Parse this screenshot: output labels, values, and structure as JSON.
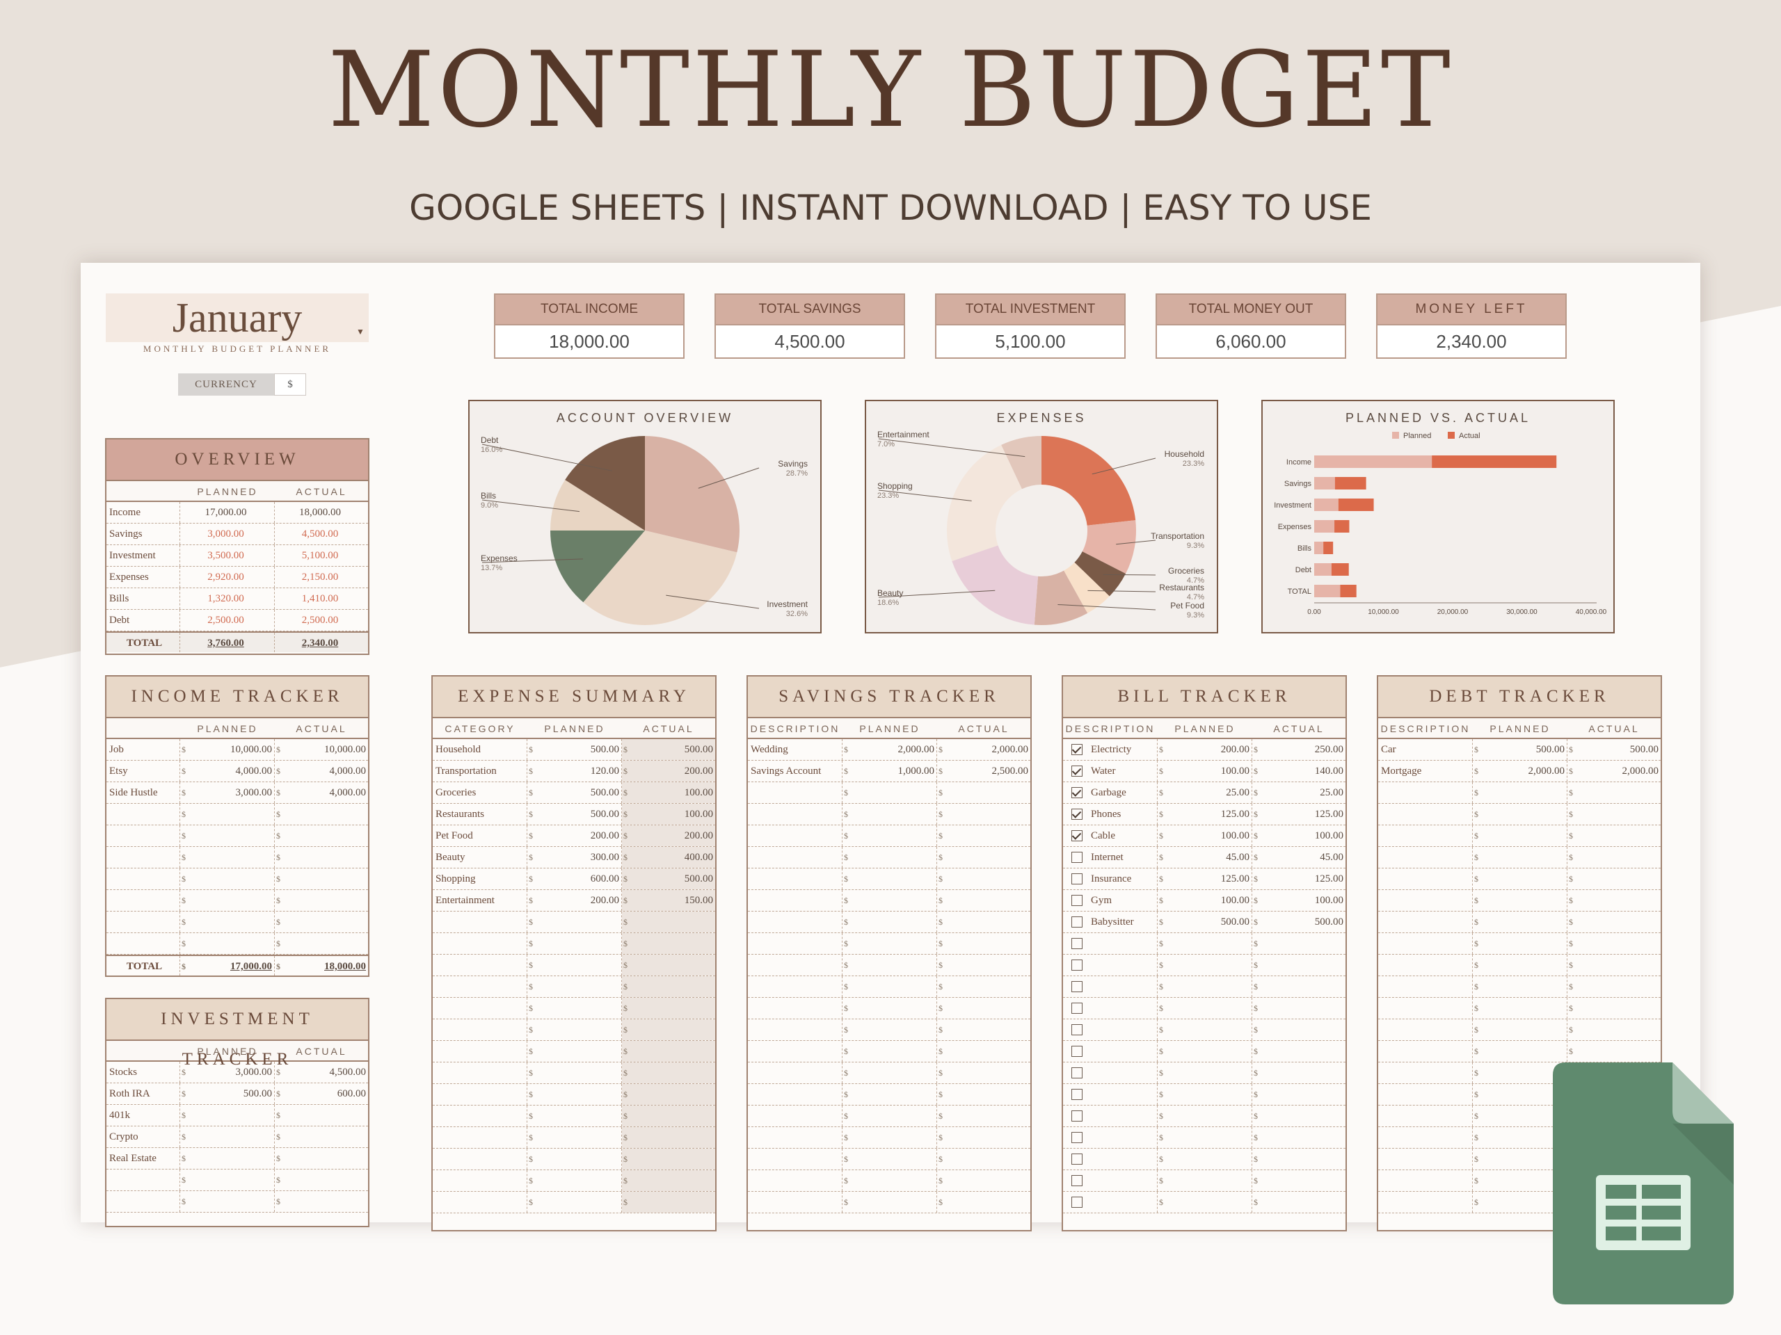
{
  "header": {
    "title": "MONTHLY BUDGET",
    "subtitle": "GOOGLE SHEETS | INSTANT DOWNLOAD | EASY TO USE"
  },
  "month": {
    "name": "January",
    "subtitle": "MONTHLY BUDGET PLANNER",
    "currency_label": "CURRENCY",
    "currency_value": "$"
  },
  "kpis": [
    {
      "label": "TOTAL INCOME",
      "value": "18,000.00"
    },
    {
      "label": "TOTAL SAVINGS",
      "value": "4,500.00"
    },
    {
      "label": "TOTAL INVESTMENT",
      "value": "5,100.00"
    },
    {
      "label": "TOTAL MONEY OUT",
      "value": "6,060.00"
    },
    {
      "label": "MONEY LEFT",
      "value": "2,340.00"
    }
  ],
  "overview": {
    "title": "OVERVIEW",
    "col_planned": "PLANNED",
    "col_actual": "ACTUAL",
    "rows": [
      {
        "label": "Income",
        "planned": "17,000.00",
        "actual": "18,000.00"
      },
      {
        "label": "Savings",
        "planned": "3,000.00",
        "actual": "4,500.00"
      },
      {
        "label": "Investment",
        "planned": "3,500.00",
        "actual": "5,100.00"
      },
      {
        "label": "Expenses",
        "planned": "2,920.00",
        "actual": "2,150.00"
      },
      {
        "label": "Bills",
        "planned": "1,320.00",
        "actual": "1,410.00"
      },
      {
        "label": "Debt",
        "planned": "2,500.00",
        "actual": "2,500.00"
      }
    ],
    "total_label": "TOTAL",
    "total_planned": "3,760.00",
    "total_actual": "2,340.00"
  },
  "income_tracker": {
    "title": "INCOME TRACKER",
    "col_planned": "PLANNED",
    "col_actual": "ACTUAL",
    "rows": [
      {
        "label": "Job",
        "planned": "10,000.00",
        "actual": "10,000.00"
      },
      {
        "label": "Etsy",
        "planned": "4,000.00",
        "actual": "4,000.00"
      },
      {
        "label": "Side Hustle",
        "planned": "3,000.00",
        "actual": "4,000.00"
      },
      {
        "label": "",
        "planned": "",
        "actual": ""
      },
      {
        "label": "",
        "planned": "",
        "actual": ""
      },
      {
        "label": "",
        "planned": "",
        "actual": ""
      },
      {
        "label": "",
        "planned": "",
        "actual": ""
      },
      {
        "label": "",
        "planned": "",
        "actual": ""
      },
      {
        "label": "",
        "planned": "",
        "actual": ""
      },
      {
        "label": "",
        "planned": "",
        "actual": ""
      }
    ],
    "total_label": "TOTAL",
    "total_planned": "17,000.00",
    "total_actual": "18,000.00"
  },
  "investment_tracker": {
    "title": "INVESTMENT TRACKER",
    "col_planned": "PLANNED",
    "col_actual": "ACTUAL",
    "rows": [
      {
        "label": "Stocks",
        "planned": "3,000.00",
        "actual": "4,500.00"
      },
      {
        "label": "Roth IRA",
        "planned": "500.00",
        "actual": "600.00"
      },
      {
        "label": "401k",
        "planned": "",
        "actual": ""
      },
      {
        "label": "Crypto",
        "planned": "",
        "actual": ""
      },
      {
        "label": "Real Estate",
        "planned": "",
        "actual": ""
      },
      {
        "label": "",
        "planned": "",
        "actual": ""
      },
      {
        "label": "",
        "planned": "",
        "actual": ""
      }
    ]
  },
  "expense_summary": {
    "title": "EXPENSE SUMMARY",
    "col_category": "CATEGORY",
    "col_planned": "PLANNED",
    "col_actual": "ACTUAL",
    "rows": [
      {
        "label": "Household",
        "planned": "500.00",
        "actual": "500.00"
      },
      {
        "label": "Transportation",
        "planned": "120.00",
        "actual": "200.00"
      },
      {
        "label": "Groceries",
        "planned": "500.00",
        "actual": "100.00"
      },
      {
        "label": "Restaurants",
        "planned": "500.00",
        "actual": "100.00"
      },
      {
        "label": "Pet Food",
        "planned": "200.00",
        "actual": "200.00"
      },
      {
        "label": "Beauty",
        "planned": "300.00",
        "actual": "400.00"
      },
      {
        "label": "Shopping",
        "planned": "600.00",
        "actual": "500.00"
      },
      {
        "label": "Entertainment",
        "planned": "200.00",
        "actual": "150.00"
      },
      {
        "label": "",
        "planned": "",
        "actual": ""
      },
      {
        "label": "",
        "planned": "",
        "actual": ""
      },
      {
        "label": "",
        "planned": "",
        "actual": ""
      },
      {
        "label": "",
        "planned": "",
        "actual": ""
      },
      {
        "label": "",
        "planned": "",
        "actual": ""
      },
      {
        "label": "",
        "planned": "",
        "actual": ""
      },
      {
        "label": "",
        "planned": "",
        "actual": ""
      },
      {
        "label": "",
        "planned": "",
        "actual": ""
      },
      {
        "label": "",
        "planned": "",
        "actual": ""
      },
      {
        "label": "",
        "planned": "",
        "actual": ""
      },
      {
        "label": "",
        "planned": "",
        "actual": ""
      },
      {
        "label": "",
        "planned": "",
        "actual": ""
      },
      {
        "label": "",
        "planned": "",
        "actual": ""
      },
      {
        "label": "",
        "planned": "",
        "actual": ""
      }
    ]
  },
  "savings_tracker": {
    "title": "SAVINGS TRACKER",
    "col_description": "DESCRIPTION",
    "col_planned": "PLANNED",
    "col_actual": "ACTUAL",
    "rows": [
      {
        "label": "Wedding",
        "planned": "2,000.00",
        "actual": "2,000.00"
      },
      {
        "label": "Savings Account",
        "planned": "1,000.00",
        "actual": "2,500.00"
      },
      {
        "label": "",
        "planned": "",
        "actual": ""
      },
      {
        "label": "",
        "planned": "",
        "actual": ""
      },
      {
        "label": "",
        "planned": "",
        "actual": ""
      },
      {
        "label": "",
        "planned": "",
        "actual": ""
      },
      {
        "label": "",
        "planned": "",
        "actual": ""
      },
      {
        "label": "",
        "planned": "",
        "actual": ""
      },
      {
        "label": "",
        "planned": "",
        "actual": ""
      },
      {
        "label": "",
        "planned": "",
        "actual": ""
      },
      {
        "label": "",
        "planned": "",
        "actual": ""
      },
      {
        "label": "",
        "planned": "",
        "actual": ""
      },
      {
        "label": "",
        "planned": "",
        "actual": ""
      },
      {
        "label": "",
        "planned": "",
        "actual": ""
      },
      {
        "label": "",
        "planned": "",
        "actual": ""
      },
      {
        "label": "",
        "planned": "",
        "actual": ""
      },
      {
        "label": "",
        "planned": "",
        "actual": ""
      },
      {
        "label": "",
        "planned": "",
        "actual": ""
      },
      {
        "label": "",
        "planned": "",
        "actual": ""
      },
      {
        "label": "",
        "planned": "",
        "actual": ""
      },
      {
        "label": "",
        "planned": "",
        "actual": ""
      },
      {
        "label": "",
        "planned": "",
        "actual": ""
      }
    ]
  },
  "bill_tracker": {
    "title": "BILL TRACKER",
    "col_description": "DESCRIPTION",
    "col_planned": "PLANNED",
    "col_actual": "ACTUAL",
    "rows": [
      {
        "checked": true,
        "label": "Electricty",
        "planned": "200.00",
        "actual": "250.00"
      },
      {
        "checked": true,
        "label": "Water",
        "planned": "100.00",
        "actual": "140.00"
      },
      {
        "checked": true,
        "label": "Garbage",
        "planned": "25.00",
        "actual": "25.00"
      },
      {
        "checked": true,
        "label": "Phones",
        "planned": "125.00",
        "actual": "125.00"
      },
      {
        "checked": true,
        "label": "Cable",
        "planned": "100.00",
        "actual": "100.00"
      },
      {
        "checked": false,
        "label": "Internet",
        "planned": "45.00",
        "actual": "45.00"
      },
      {
        "checked": false,
        "label": "Insurance",
        "planned": "125.00",
        "actual": "125.00"
      },
      {
        "checked": false,
        "label": "Gym",
        "planned": "100.00",
        "actual": "100.00"
      },
      {
        "checked": false,
        "label": "Babysitter",
        "planned": "500.00",
        "actual": "500.00"
      },
      {
        "checked": false,
        "label": "",
        "planned": "",
        "actual": ""
      },
      {
        "checked": false,
        "label": "",
        "planned": "",
        "actual": ""
      },
      {
        "checked": false,
        "label": "",
        "planned": "",
        "actual": ""
      },
      {
        "checked": false,
        "label": "",
        "planned": "",
        "actual": ""
      },
      {
        "checked": false,
        "label": "",
        "planned": "",
        "actual": ""
      },
      {
        "checked": false,
        "label": "",
        "planned": "",
        "actual": ""
      },
      {
        "checked": false,
        "label": "",
        "planned": "",
        "actual": ""
      },
      {
        "checked": false,
        "label": "",
        "planned": "",
        "actual": ""
      },
      {
        "checked": false,
        "label": "",
        "planned": "",
        "actual": ""
      },
      {
        "checked": false,
        "label": "",
        "planned": "",
        "actual": ""
      },
      {
        "checked": false,
        "label": "",
        "planned": "",
        "actual": ""
      },
      {
        "checked": false,
        "label": "",
        "planned": "",
        "actual": ""
      },
      {
        "checked": false,
        "label": "",
        "planned": "",
        "actual": ""
      }
    ]
  },
  "debt_tracker": {
    "title": "DEBT TRACKER",
    "col_description": "DESCRIPTION",
    "col_planned": "PLANNED",
    "col_actual": "ACTUAL",
    "rows": [
      {
        "label": "Car",
        "planned": "500.00",
        "actual": "500.00"
      },
      {
        "label": "Mortgage",
        "planned": "2,000.00",
        "actual": "2,000.00"
      },
      {
        "label": "",
        "planned": "",
        "actual": ""
      },
      {
        "label": "",
        "planned": "",
        "actual": ""
      },
      {
        "label": "",
        "planned": "",
        "actual": ""
      },
      {
        "label": "",
        "planned": "",
        "actual": ""
      },
      {
        "label": "",
        "planned": "",
        "actual": ""
      },
      {
        "label": "",
        "planned": "",
        "actual": ""
      },
      {
        "label": "",
        "planned": "",
        "actual": ""
      },
      {
        "label": "",
        "planned": "",
        "actual": ""
      },
      {
        "label": "",
        "planned": "",
        "actual": ""
      },
      {
        "label": "",
        "planned": "",
        "actual": ""
      },
      {
        "label": "",
        "planned": "",
        "actual": ""
      },
      {
        "label": "",
        "planned": "",
        "actual": ""
      },
      {
        "label": "",
        "planned": "",
        "actual": ""
      },
      {
        "label": "",
        "planned": "",
        "actual": ""
      },
      {
        "label": "",
        "planned": "",
        "actual": ""
      },
      {
        "label": "",
        "planned": "",
        "actual": ""
      },
      {
        "label": "",
        "planned": "",
        "actual": ""
      },
      {
        "label": "",
        "planned": "",
        "actual": ""
      },
      {
        "label": "",
        "planned": "",
        "actual": ""
      },
      {
        "label": "",
        "planned": "",
        "actual": ""
      }
    ]
  },
  "currency_symbol": "$",
  "colors": {
    "accent_red": "#d0694f",
    "header_pink": "#d3aea0",
    "header_beige": "#e8d8c8",
    "title_brown": "#553829",
    "sheets_green": "#5f8a6e"
  },
  "icons": {
    "app": "google-sheets-icon"
  },
  "chart_data": [
    {
      "type": "pie",
      "title": "ACCOUNT OVERVIEW",
      "categories": [
        "Savings",
        "Investment",
        "Expenses",
        "Bills",
        "Debt"
      ],
      "values": [
        28.7,
        32.6,
        13.7,
        9.0,
        16.0
      ],
      "labels": [
        "28.7%",
        "32.6%",
        "13.7%",
        "9.0%",
        "16.0%"
      ],
      "colors": [
        "#d8b2a5",
        "#ead7c7",
        "#6a7f68",
        "#e8d5c3",
        "#7a5a47"
      ]
    },
    {
      "type": "pie",
      "title": "EXPENSES",
      "donut": true,
      "categories": [
        "Household",
        "Transportation",
        "Groceries",
        "Restaurants",
        "Pet Food",
        "Beauty",
        "Shopping",
        "Entertainment"
      ],
      "values": [
        23.3,
        9.3,
        4.7,
        4.7,
        9.3,
        18.6,
        23.3,
        7.0
      ],
      "labels": [
        "23.3%",
        "9.3%",
        "4.7%",
        "4.7%",
        "9.3%",
        "18.6%",
        "23.3%",
        "7.0%"
      ],
      "colors": [
        "#dc7556",
        "#e6b4a8",
        "#7a5a47",
        "#f8e0c9",
        "#d8b2a5",
        "#e8cdd8",
        "#f3e6dc",
        "#e2c7bb"
      ]
    },
    {
      "type": "bar",
      "orientation": "horizontal",
      "stacked": true,
      "title": "PLANNED VS. ACTUAL",
      "categories": [
        "Income",
        "Savings",
        "Investment",
        "Expenses",
        "Bills",
        "Debt",
        "TOTAL"
      ],
      "series": [
        {
          "name": "Planned",
          "values": [
            17000,
            3000,
            3500,
            2920,
            1320,
            2500,
            3760
          ],
          "color": "#e6b4a8"
        },
        {
          "name": "Actual",
          "values": [
            18000,
            4500,
            5100,
            2150,
            1410,
            2500,
            2340
          ],
          "color": "#dc6a4a"
        }
      ],
      "xlim": [
        0,
        40000
      ],
      "xticks": [
        "0.00",
        "10,000.00",
        "20,000.00",
        "30,000.00",
        "40,000.00"
      ],
      "legend": "top"
    }
  ]
}
